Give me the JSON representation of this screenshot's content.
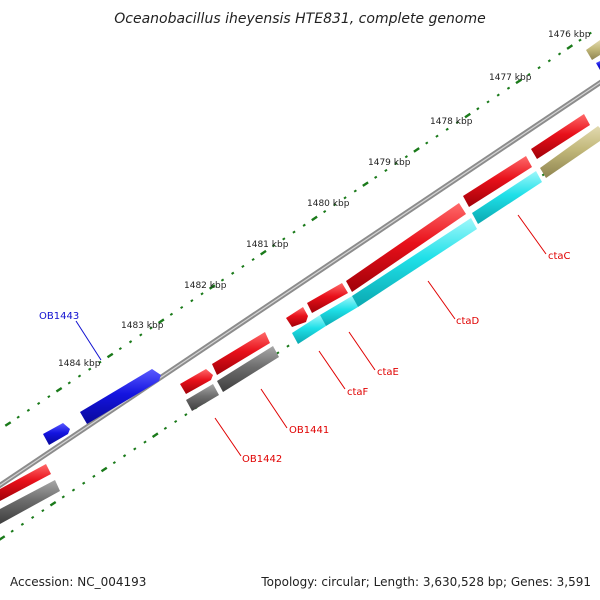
{
  "title": "Oceanobacillus iheyensis HTE831, complete genome",
  "footer": {
    "accession": "Accession: NC_004193",
    "summary": "Topology: circular; Length: 3,630,528 bp; Genes: 3,591"
  },
  "kbp_labels": [
    "1476 kbp",
    "1477 kbp",
    "1478 kbp",
    "1479 kbp",
    "1480 kbp",
    "1481 kbp",
    "1482 kbp",
    "1483 kbp",
    "1484 kbp"
  ],
  "gene_labels": {
    "ob1443": "OB1443",
    "ctaC": "ctaC",
    "ctaD": "ctaD",
    "ctaE": "ctaE",
    "ctaF": "ctaF",
    "ob1441": "OB1441",
    "ob1442": "OB1442"
  },
  "colors": {
    "backbone": "#8c8c8c",
    "tick": "#1a7a1a",
    "red_gene": "#e8101a",
    "blue_gene": "#1414e0",
    "cyan_gene": "#1fe0e8",
    "gray_gene": "#6e6e6e",
    "olive_gene": "#c2b87a",
    "label_red": "#e00000",
    "label_blue": "#1010d0"
  }
}
